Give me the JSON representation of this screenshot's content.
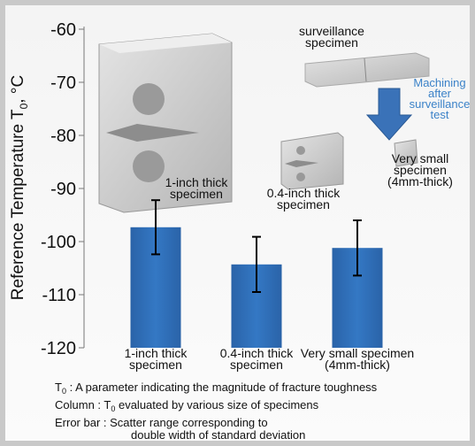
{
  "chart_data": {
    "type": "bar",
    "ylabel": {
      "a": "Reference Temperature T",
      "sub": "0",
      "b": ", °C"
    },
    "categories": [
      [
        "1-inch thick",
        "specimen"
      ],
      [
        "0.4-inch thick",
        "specimen"
      ],
      [
        "Very small specimen",
        "(4mm-thick)"
      ]
    ],
    "values": [
      -97.3,
      -104.3,
      -101.2
    ],
    "errors": [
      5.1,
      5.2,
      5.2
    ],
    "color": "#2f6eb5",
    "ylim": [
      -120,
      -60
    ],
    "yticks": [
      -120,
      -110,
      -100,
      -90,
      -80,
      -70,
      -60
    ],
    "image_labels": {
      "surveillance": [
        "surveillance",
        "specimen"
      ],
      "machining": [
        "Machining",
        "after",
        "surveillance",
        "test"
      ],
      "one_inch": [
        "1-inch thick",
        "specimen"
      ],
      "point_four": [
        "0.4-inch thick",
        "specimen"
      ],
      "very_small": [
        "Very small",
        "specimen",
        "(4mm-thick)"
      ]
    },
    "notes": [
      {
        "a": "T",
        "sub": "0",
        "b": " : A parameter indicating the magnitude of fracture toughness"
      },
      {
        "a": "Column : T",
        "sub": "0",
        "b": " evaluated by various size of specimens"
      },
      {
        "a": "Error bar : Scatter range corresponding to"
      },
      {
        "a": "double width of standard deviation"
      }
    ]
  }
}
